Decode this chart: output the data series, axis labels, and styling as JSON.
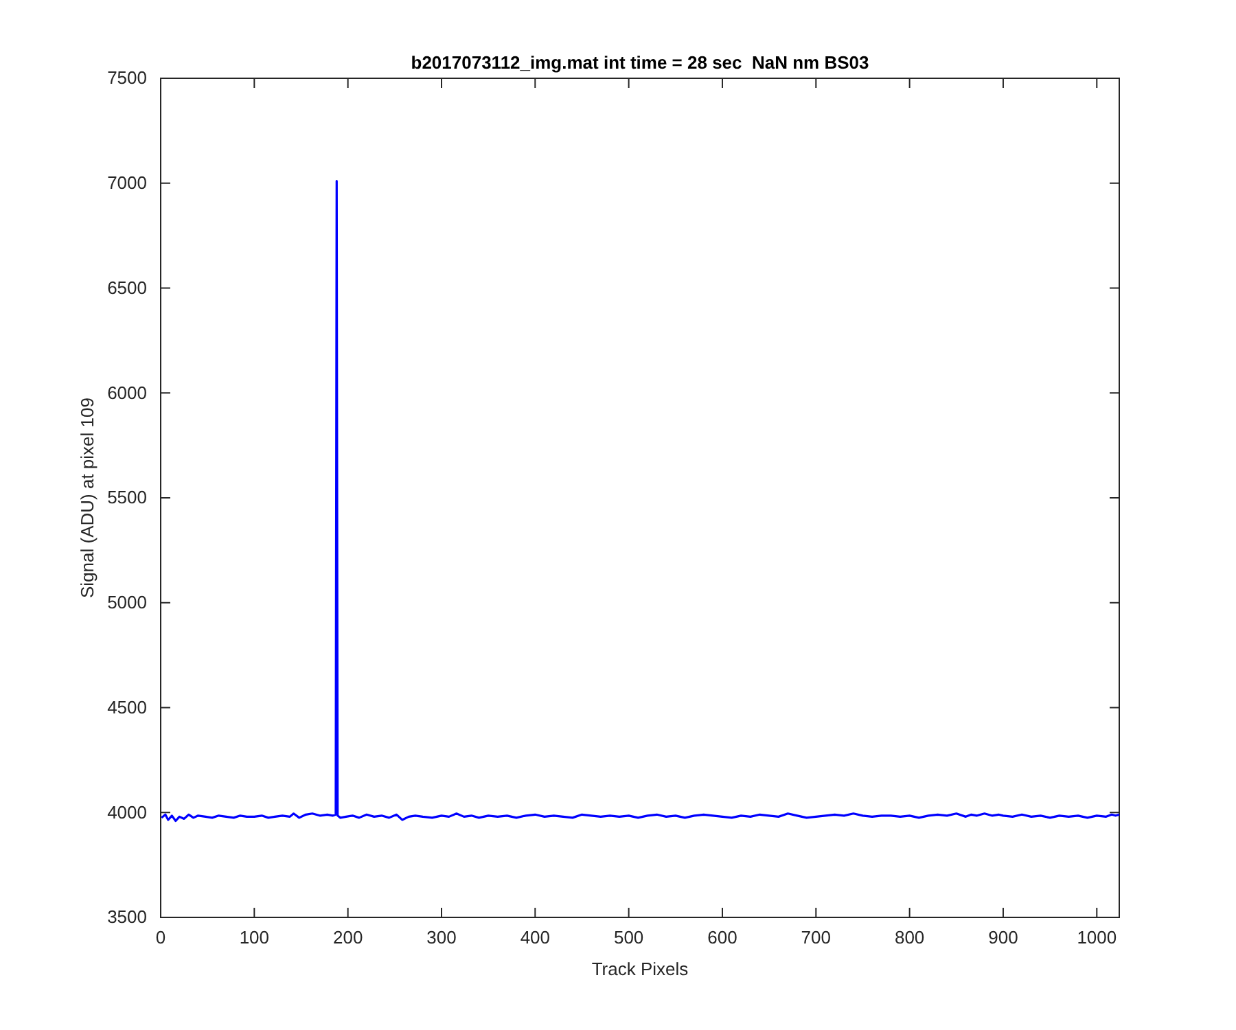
{
  "chart_data": {
    "type": "line",
    "title": "b2017073112_img.mat int time = 28 sec  NaN nm BS03",
    "xlabel": "Track Pixels",
    "ylabel": "Signal (ADU) at pixel 109",
    "xlim": [
      0,
      1024
    ],
    "xticks": [
      0,
      100,
      200,
      300,
      400,
      500,
      600,
      700,
      800,
      900,
      1000
    ],
    "ylim": [
      3500,
      7500
    ],
    "yticks": [
      3500,
      4000,
      4500,
      5000,
      5500,
      6000,
      6500,
      7000,
      7500
    ],
    "line_style": "solid",
    "marker": "none",
    "series": [
      {
        "color": "#0000ff",
        "x": [
          1,
          5,
          8,
          12,
          16,
          20,
          25,
          30,
          35,
          40,
          48,
          55,
          62,
          70,
          78,
          85,
          92,
          100,
          108,
          115,
          122,
          130,
          138,
          142,
          148,
          155,
          162,
          170,
          178,
          184,
          187,
          188,
          189,
          192,
          198,
          205,
          212,
          220,
          228,
          236,
          244,
          252,
          258,
          265,
          272,
          280,
          290,
          300,
          308,
          316,
          324,
          332,
          340,
          350,
          360,
          370,
          380,
          390,
          400,
          410,
          420,
          430,
          440,
          450,
          460,
          470,
          480,
          490,
          500,
          510,
          520,
          530,
          540,
          550,
          560,
          570,
          580,
          590,
          600,
          610,
          620,
          630,
          640,
          650,
          660,
          670,
          680,
          690,
          700,
          710,
          720,
          730,
          740,
          750,
          760,
          770,
          780,
          790,
          800,
          810,
          820,
          830,
          840,
          850,
          860,
          866,
          872,
          880,
          888,
          895,
          900,
          910,
          920,
          930,
          940,
          950,
          960,
          970,
          980,
          990,
          1000,
          1010,
          1016,
          1020,
          1024
        ],
        "values": [
          3975,
          3990,
          3965,
          3985,
          3960,
          3980,
          3970,
          3990,
          3975,
          3985,
          3980,
          3975,
          3985,
          3980,
          3975,
          3985,
          3980,
          3980,
          3985,
          3975,
          3980,
          3985,
          3980,
          3995,
          3975,
          3990,
          3995,
          3985,
          3990,
          3985,
          3990,
          7010,
          3985,
          3975,
          3980,
          3985,
          3975,
          3990,
          3980,
          3985,
          3975,
          3990,
          3965,
          3980,
          3985,
          3980,
          3975,
          3985,
          3980,
          3995,
          3980,
          3985,
          3975,
          3985,
          3980,
          3985,
          3975,
          3985,
          3990,
          3980,
          3985,
          3980,
          3975,
          3990,
          3985,
          3980,
          3985,
          3980,
          3985,
          3975,
          3985,
          3990,
          3980,
          3985,
          3975,
          3985,
          3990,
          3985,
          3980,
          3975,
          3985,
          3980,
          3990,
          3985,
          3980,
          3995,
          3985,
          3975,
          3980,
          3985,
          3990,
          3985,
          3995,
          3985,
          3980,
          3985,
          3985,
          3980,
          3985,
          3975,
          3985,
          3990,
          3985,
          3995,
          3980,
          3990,
          3985,
          3995,
          3985,
          3990,
          3985,
          3980,
          3990,
          3980,
          3985,
          3975,
          3985,
          3980,
          3985,
          3975,
          3985,
          3980,
          3990,
          3985,
          3990
        ]
      }
    ]
  }
}
